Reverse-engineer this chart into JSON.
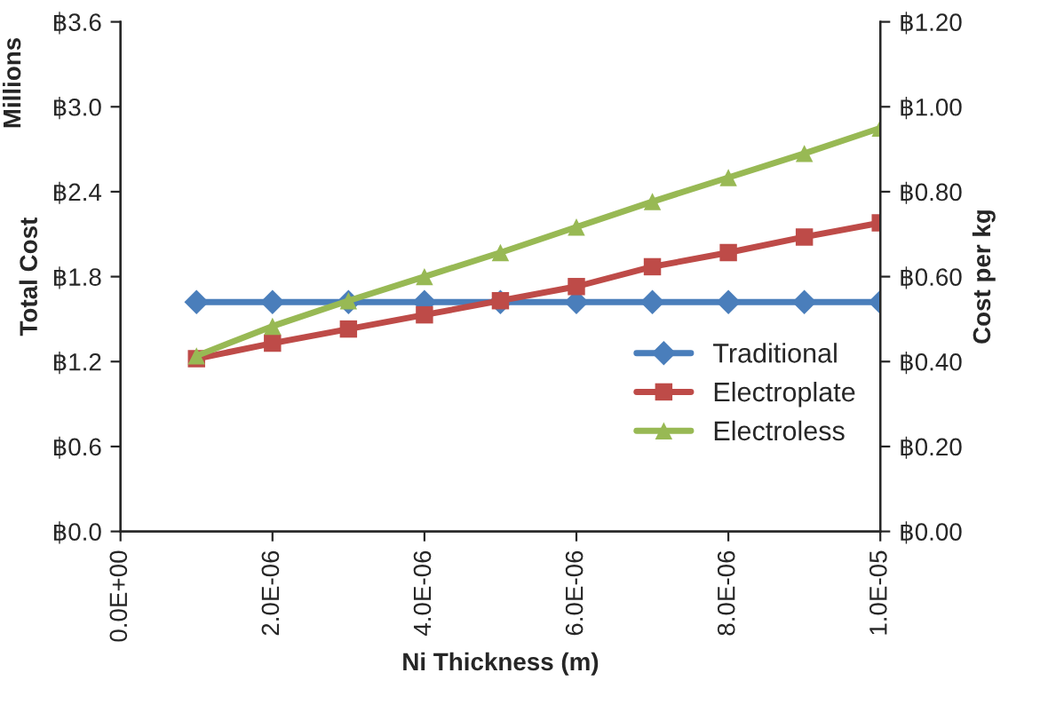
{
  "chart_data": {
    "type": "line",
    "xlabel": "Ni Thickness (m)",
    "ylabel": "Total Cost",
    "y2label": "Cost per kg",
    "annotations": [
      "Millions"
    ],
    "x": [
      1e-06,
      2e-06,
      3e-06,
      4e-06,
      5e-06,
      6e-06,
      7e-06,
      8e-06,
      9e-06,
      1e-05
    ],
    "series": [
      {
        "name": "Traditional",
        "color": "#4a7ebb",
        "marker": "diamond",
        "values": [
          1.62,
          1.62,
          1.62,
          1.62,
          1.62,
          1.62,
          1.62,
          1.62,
          1.62,
          1.62
        ]
      },
      {
        "name": "Electroplate",
        "color": "#be4b48",
        "marker": "square",
        "values": [
          1.22,
          1.33,
          1.43,
          1.53,
          1.63,
          1.73,
          1.87,
          1.97,
          2.08,
          2.18
        ]
      },
      {
        "name": "Electroless",
        "color": "#98b954",
        "marker": "triangle",
        "values": [
          1.24,
          1.45,
          1.63,
          1.8,
          1.97,
          2.15,
          2.33,
          2.5,
          2.67,
          2.85
        ]
      }
    ],
    "xlim": [
      0,
      1e-05
    ],
    "xticks": [
      {
        "value": 0,
        "label": "0.0E+00"
      },
      {
        "value": 2e-06,
        "label": "2.0E-06"
      },
      {
        "value": 4e-06,
        "label": "4.0E-06"
      },
      {
        "value": 6e-06,
        "label": "6.0E-06"
      },
      {
        "value": 8e-06,
        "label": "8.0E-06"
      },
      {
        "value": 1e-05,
        "label": "1.0E-05"
      }
    ],
    "ylim": [
      0,
      3.6
    ],
    "yticks": [
      {
        "value": 0,
        "label": "฿0.0"
      },
      {
        "value": 0.6,
        "label": "฿0.6"
      },
      {
        "value": 1.2,
        "label": "฿1.2"
      },
      {
        "value": 1.8,
        "label": "฿1.8"
      },
      {
        "value": 2.4,
        "label": "฿2.4"
      },
      {
        "value": 3.0,
        "label": "฿3.0"
      },
      {
        "value": 3.6,
        "label": "฿3.6"
      }
    ],
    "y2lim": [
      0,
      1.2
    ],
    "y2ticks": [
      {
        "value": 0,
        "label": "฿0.00"
      },
      {
        "value": 0.2,
        "label": "฿0.20"
      },
      {
        "value": 0.4,
        "label": "฿0.40"
      },
      {
        "value": 0.6,
        "label": "฿0.60"
      },
      {
        "value": 0.8,
        "label": "฿0.80"
      },
      {
        "value": 1.0,
        "label": "฿1.00"
      },
      {
        "value": 1.2,
        "label": "฿1.20"
      }
    ],
    "legend": "lower right",
    "grid": false,
    "line_style": "solid"
  }
}
